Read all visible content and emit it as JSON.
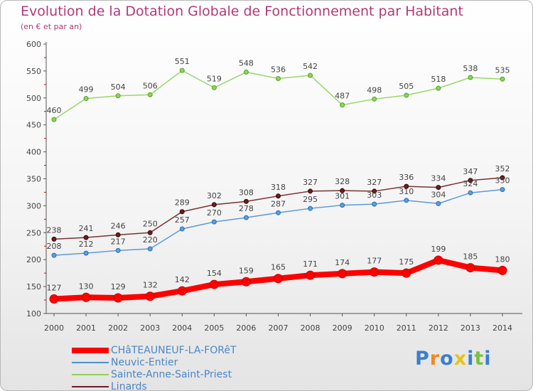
{
  "chart_data": {
    "type": "line",
    "title": "Evolution de la Dotation Globale de Fonctionnement par Habitant",
    "subtitle": "(en € et par an)",
    "xlabel": "",
    "ylabel": "",
    "ylim": [
      100,
      600
    ],
    "yticks": [
      100,
      150,
      200,
      250,
      300,
      350,
      400,
      450,
      500,
      550,
      600
    ],
    "categories": [
      "2000",
      "2001",
      "2002",
      "2003",
      "2004",
      "2005",
      "2006",
      "2007",
      "2008",
      "2009",
      "2010",
      "2011",
      "2012",
      "2013",
      "2014"
    ],
    "series": [
      {
        "name": "CHâTEAUNEUF-LA-FORêT",
        "color": "#ff0000",
        "values": [
          127,
          130,
          129,
          132,
          142,
          154,
          159,
          165,
          171,
          174,
          177,
          175,
          199,
          185,
          180
        ]
      },
      {
        "name": "Neuvic-Entier",
        "color": "#4a90d9",
        "values": [
          208,
          212,
          217,
          220,
          257,
          270,
          278,
          287,
          295,
          301,
          303,
          310,
          304,
          324,
          330
        ]
      },
      {
        "name": "Sainte-Anne-Saint-Priest",
        "color": "#8fd35a",
        "values": [
          460,
          499,
          504,
          506,
          551,
          519,
          548,
          536,
          542,
          487,
          498,
          505,
          518,
          538,
          535
        ]
      },
      {
        "name": "Linards",
        "color": "#6b1e1e",
        "values": [
          238,
          241,
          246,
          250,
          289,
          302,
          308,
          318,
          327,
          328,
          327,
          336,
          334,
          347,
          352
        ]
      }
    ],
    "legend_position": "bottom-left",
    "grid": false
  },
  "branding": {
    "logo_letters": [
      "P",
      "r",
      "o",
      "x",
      "i",
      "t",
      "i"
    ],
    "logo_colors": [
      "#3a7fd0",
      "#f08a1c",
      "#3a7fd0",
      "#e8c21a",
      "#3a7fd0",
      "#7ac142",
      "#3a7fd0"
    ]
  }
}
